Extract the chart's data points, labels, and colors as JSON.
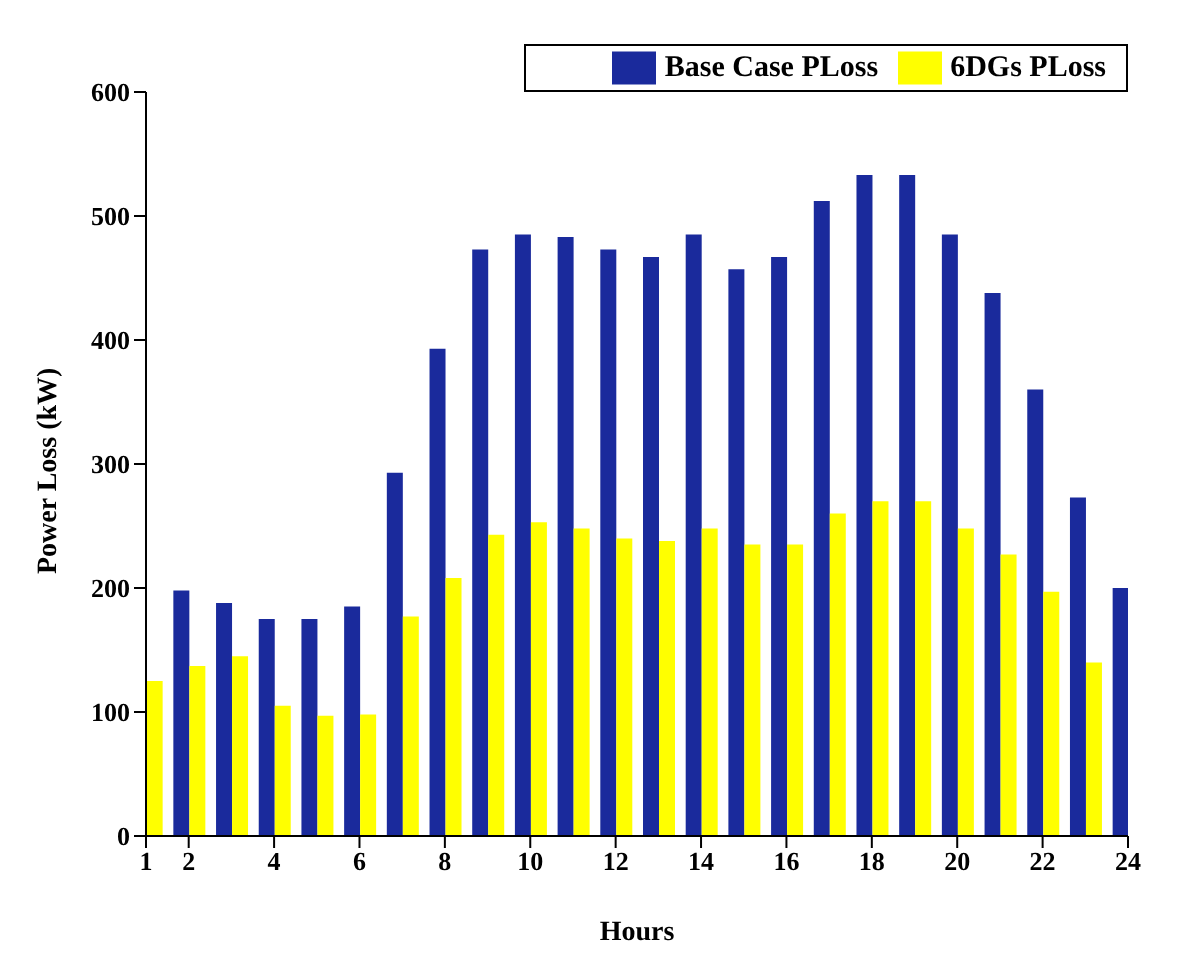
{
  "chart_data": {
    "type": "bar",
    "xlabel": "Hours",
    "ylabel": "Power Loss (kW)",
    "x": [
      1,
      2,
      3,
      4,
      5,
      6,
      7,
      8,
      9,
      10,
      11,
      12,
      13,
      14,
      15,
      16,
      17,
      18,
      19,
      20,
      21,
      22,
      23,
      24
    ],
    "series": [
      {
        "name": "Base Case PLoss",
        "color": "#1a2a9c",
        "values": [
          null,
          198,
          188,
          175,
          175,
          185,
          293,
          393,
          473,
          485,
          483,
          473,
          467,
          485,
          457,
          467,
          512,
          533,
          533,
          485,
          438,
          360,
          273,
          200
        ]
      },
      {
        "name": "6DGs PLoss",
        "color": "#ffff00",
        "values": [
          125,
          137,
          145,
          105,
          97,
          98,
          177,
          208,
          243,
          253,
          248,
          240,
          238,
          248,
          235,
          235,
          260,
          270,
          270,
          248,
          227,
          197,
          140,
          null
        ]
      }
    ],
    "xlim": [
      1,
      24
    ],
    "xticks": [
      1,
      2,
      4,
      6,
      8,
      10,
      12,
      14,
      16,
      18,
      20,
      22,
      24
    ],
    "ylim": [
      0,
      600
    ],
    "yticks": [
      0,
      100,
      200,
      300,
      400,
      500,
      600
    ],
    "legend": "top right"
  }
}
